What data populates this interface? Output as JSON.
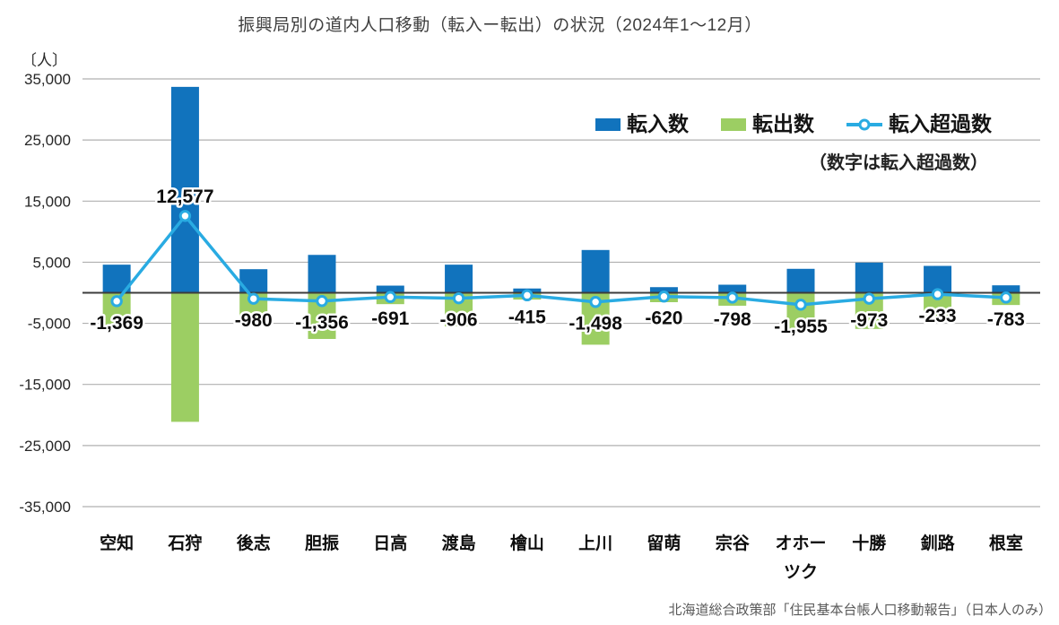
{
  "title": "振興局別の道内人口移動（転入ー転出）の状況（2024年1〜12月）",
  "y_axis": {
    "unit_label": "〔人〕",
    "tick_values": [
      35000,
      25000,
      15000,
      5000,
      -5000,
      -15000,
      -25000,
      -35000
    ],
    "tick_labels": [
      "35,000",
      "25,000",
      "15,000",
      "5,000",
      "-5,000",
      "-15,000",
      "-25,000",
      "-35,000"
    ]
  },
  "legend": {
    "items": [
      {
        "label": "転入数",
        "marker": "square",
        "color": "#1173BD"
      },
      {
        "label": "転出数",
        "marker": "square",
        "color": "#9CCE63"
      },
      {
        "label": "転入超過数",
        "marker": "line-circle",
        "color": "#29ABE2"
      }
    ],
    "note": "（数字は転入超過数）"
  },
  "source": "北海道総合政策部「住民基本台帳人口移動報告」（日本人のみ）",
  "chart_data": {
    "type": "bar",
    "subtype": "bar-line-combo",
    "title": "振興局別の道内人口移動（転入ー転出）の状況（2024年1〜12月）",
    "ylabel": "〔人〕",
    "ylim": [
      -35000,
      35000
    ],
    "ytick_step": 10000,
    "grid": true,
    "zero_line": true,
    "legend_position": "inside-top-right",
    "categories": [
      "空知",
      "石狩",
      "後志",
      "胆振",
      "日高",
      "渡島",
      "檜山",
      "上川",
      "留萌",
      "宗谷",
      "オホーツク",
      "十勝",
      "釧路",
      "根室"
    ],
    "category_display_lines": [
      [
        "空知"
      ],
      [
        "石狩"
      ],
      [
        "後志"
      ],
      [
        "胆振"
      ],
      [
        "日高"
      ],
      [
        "渡島"
      ],
      [
        "檜山"
      ],
      [
        "上川"
      ],
      [
        "留萌"
      ],
      [
        "宗谷"
      ],
      [
        "オホー",
        "ツク"
      ],
      [
        "十勝"
      ],
      [
        "釧路"
      ],
      [
        "根室"
      ]
    ],
    "series": [
      {
        "name": "転入数",
        "type": "bar",
        "color": "#1173BD",
        "estimated": true,
        "values": [
          4600,
          33700,
          3860,
          6200,
          1170,
          4600,
          700,
          7000,
          920,
          1320,
          3920,
          4940,
          4400,
          1220
        ]
      },
      {
        "name": "転出数",
        "type": "bar",
        "color": "#9CCE63",
        "estimated": true,
        "values": [
          5969,
          21123,
          4840,
          7556,
          1861,
          5506,
          1115,
          8498,
          1540,
          2118,
          5875,
          5913,
          4633,
          2003
        ]
      },
      {
        "name": "転入超過数",
        "type": "line",
        "color": "#29ABE2",
        "estimated": false,
        "values": [
          -1369,
          12577,
          -980,
          -1356,
          -691,
          -906,
          -415,
          -1498,
          -620,
          -798,
          -1955,
          -973,
          -233,
          -783
        ],
        "point_labels": [
          "-1,369",
          "12,577",
          "-980",
          "-1,356",
          "-691",
          "-906",
          "-415",
          "-1,498",
          "-620",
          "-798",
          "-1,955",
          "-973",
          "-233",
          "-783"
        ]
      }
    ]
  },
  "colors": {
    "background": "#FFFFFF",
    "grid": "#B0B0B0",
    "zero_line": "#3C3C3C",
    "title_text": "#3F3F3F",
    "axis_text": "#262626",
    "label_text": "#0D0D0D",
    "source_text": "#595959"
  }
}
